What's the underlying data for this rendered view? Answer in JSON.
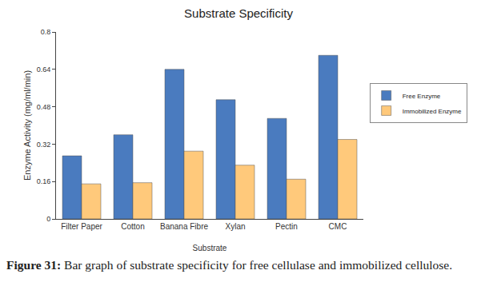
{
  "chart_data": {
    "type": "bar",
    "title": "Substrate Specificity",
    "x_label": "Substrate",
    "y_label": "Enzyme Activity (mg/ml/min)",
    "categories": [
      "Filter Paper",
      "Cotton",
      "Banana Fibre",
      "Xylan",
      "Pectin",
      "CMC"
    ],
    "series": [
      {
        "name": "Free Enzyme",
        "color": "#4a7bbf",
        "values": [
          0.27,
          0.36,
          0.64,
          0.51,
          0.43,
          0.7
        ]
      },
      {
        "name": "Immobilized Enzyme",
        "color": "#ffc97b",
        "values": [
          0.15,
          0.155,
          0.29,
          0.23,
          0.17,
          0.34
        ]
      }
    ],
    "ylim": [
      0,
      0.8
    ],
    "yticks": [
      0,
      0.16,
      0.32,
      0.48,
      0.64,
      0.8
    ],
    "grid": false,
    "legend": "right"
  },
  "caption": {
    "label": "Figure 31:",
    "text": "Bar graph of substrate specificity for free cellulase and immobilized cellulose."
  }
}
